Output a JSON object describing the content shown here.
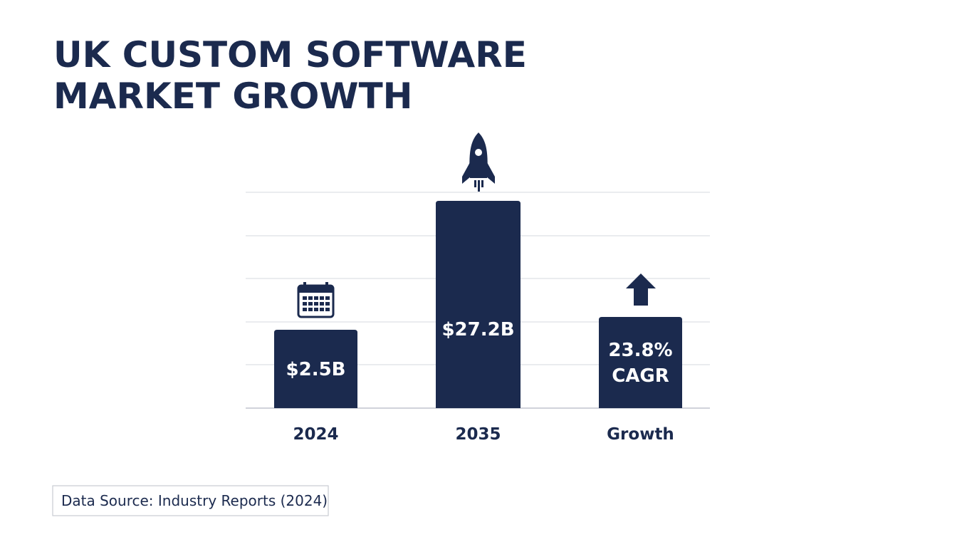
{
  "title": {
    "lines": [
      "UK CUSTOM SOFTWARE",
      "MARKET GROWTH"
    ]
  },
  "bars": [
    {
      "category": "2024",
      "label_lines": [
        "$2.5B"
      ]
    },
    {
      "category": "2035",
      "label_lines": [
        "$27.2B"
      ]
    },
    {
      "category": "Growth",
      "label_lines": [
        "23.8%",
        "CAGR"
      ]
    }
  ],
  "source": "Data Source: Industry Reports (2024)"
}
